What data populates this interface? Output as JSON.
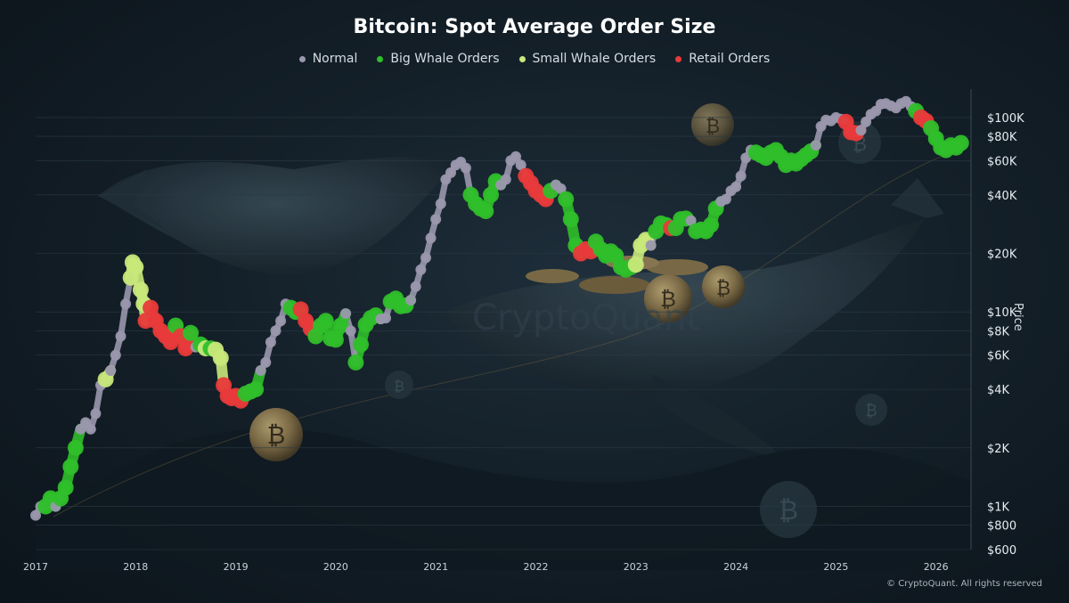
{
  "chart_data": {
    "type": "scatter",
    "title": "Bitcoin: Spot Average Order Size",
    "ylabel": "Price",
    "xlabel": "",
    "y_scale": "log",
    "ylim": [
      600,
      140000
    ],
    "xlim": [
      2017.0,
      2026.35
    ],
    "x_ticks": [
      "2017",
      "2018",
      "2019",
      "2020",
      "2021",
      "2022",
      "2023",
      "2024",
      "2025",
      "2026"
    ],
    "y_ticks": [
      {
        "value": 100000,
        "label": "$100K"
      },
      {
        "value": 80000,
        "label": "$80K"
      },
      {
        "value": 60000,
        "label": "$60K"
      },
      {
        "value": 40000,
        "label": "$40K"
      },
      {
        "value": 20000,
        "label": "$20K"
      },
      {
        "value": 10000,
        "label": "$10K"
      },
      {
        "value": 8000,
        "label": "$8K"
      },
      {
        "value": 6000,
        "label": "$6K"
      },
      {
        "value": 4000,
        "label": "$4K"
      },
      {
        "value": 2000,
        "label": "$2K"
      },
      {
        "value": 1000,
        "label": "$1K"
      },
      {
        "value": 800,
        "label": "$800"
      },
      {
        "value": 600,
        "label": "$600"
      }
    ],
    "grid": true,
    "legend_position": "top-center",
    "series": [
      {
        "name": "Normal",
        "color": "#9a97ad"
      },
      {
        "name": "Big Whale Orders",
        "color": "#2fbf2a"
      },
      {
        "name": "Small Whale Orders",
        "color": "#c8e87a"
      },
      {
        "name": "Retail Orders",
        "color": "#e83a3a"
      }
    ],
    "points": [
      [
        2017.0,
        900,
        "Normal"
      ],
      [
        2017.05,
        1000,
        "Normal"
      ],
      [
        2017.1,
        1000,
        "Big Whale Orders"
      ],
      [
        2017.15,
        1100,
        "Big Whale Orders"
      ],
      [
        2017.2,
        1000,
        "Normal"
      ],
      [
        2017.25,
        1100,
        "Big Whale Orders"
      ],
      [
        2017.3,
        1250,
        "Big Whale Orders"
      ],
      [
        2017.35,
        1600,
        "Big Whale Orders"
      ],
      [
        2017.4,
        2000,
        "Big Whale Orders"
      ],
      [
        2017.45,
        2500,
        "Normal"
      ],
      [
        2017.5,
        2700,
        "Normal"
      ],
      [
        2017.55,
        2500,
        "Normal"
      ],
      [
        2017.6,
        3000,
        "Normal"
      ],
      [
        2017.65,
        4200,
        "Normal"
      ],
      [
        2017.7,
        4500,
        "Small Whale Orders"
      ],
      [
        2017.75,
        5000,
        "Normal"
      ],
      [
        2017.8,
        6000,
        "Normal"
      ],
      [
        2017.85,
        7500,
        "Normal"
      ],
      [
        2017.9,
        11000,
        "Normal"
      ],
      [
        2017.95,
        15000,
        "Small Whale Orders"
      ],
      [
        2017.97,
        18000,
        "Small Whale Orders"
      ],
      [
        2018.0,
        17000,
        "Small Whale Orders"
      ],
      [
        2018.05,
        13000,
        "Small Whale Orders"
      ],
      [
        2018.08,
        11000,
        "Small Whale Orders"
      ],
      [
        2018.1,
        9000,
        "Retail Orders"
      ],
      [
        2018.15,
        10500,
        "Retail Orders"
      ],
      [
        2018.2,
        9000,
        "Retail Orders"
      ],
      [
        2018.25,
        8000,
        "Retail Orders"
      ],
      [
        2018.3,
        7500,
        "Retail Orders"
      ],
      [
        2018.35,
        7000,
        "Retail Orders"
      ],
      [
        2018.4,
        8500,
        "Big Whale Orders"
      ],
      [
        2018.45,
        7500,
        "Retail Orders"
      ],
      [
        2018.5,
        6500,
        "Retail Orders"
      ],
      [
        2018.55,
        7800,
        "Big Whale Orders"
      ],
      [
        2018.6,
        6600,
        "Normal"
      ],
      [
        2018.65,
        6800,
        "Big Whale Orders"
      ],
      [
        2018.7,
        6500,
        "Small Whale Orders"
      ],
      [
        2018.75,
        6500,
        "Big Whale Orders"
      ],
      [
        2018.8,
        6400,
        "Small Whale Orders"
      ],
      [
        2018.85,
        5800,
        "Small Whale Orders"
      ],
      [
        2018.88,
        4200,
        "Retail Orders"
      ],
      [
        2018.92,
        3700,
        "Retail Orders"
      ],
      [
        2018.96,
        3600,
        "Retail Orders"
      ],
      [
        2019.0,
        3700,
        "Retail Orders"
      ],
      [
        2019.05,
        3500,
        "Retail Orders"
      ],
      [
        2019.1,
        3800,
        "Big Whale Orders"
      ],
      [
        2019.15,
        3900,
        "Big Whale Orders"
      ],
      [
        2019.2,
        4000,
        "Big Whale Orders"
      ],
      [
        2019.25,
        5000,
        "Normal"
      ],
      [
        2019.3,
        5500,
        "Normal"
      ],
      [
        2019.35,
        7000,
        "Normal"
      ],
      [
        2019.4,
        8000,
        "Normal"
      ],
      [
        2019.45,
        9000,
        "Normal"
      ],
      [
        2019.5,
        11000,
        "Normal"
      ],
      [
        2019.55,
        10500,
        "Big Whale Orders"
      ],
      [
        2019.6,
        10000,
        "Big Whale Orders"
      ],
      [
        2019.65,
        10300,
        "Retail Orders"
      ],
      [
        2019.7,
        9000,
        "Retail Orders"
      ],
      [
        2019.75,
        8200,
        "Retail Orders"
      ],
      [
        2019.8,
        7500,
        "Big Whale Orders"
      ],
      [
        2019.85,
        8500,
        "Big Whale Orders"
      ],
      [
        2019.9,
        9000,
        "Big Whale Orders"
      ],
      [
        2019.95,
        7300,
        "Big Whale Orders"
      ],
      [
        2020.0,
        7200,
        "Big Whale Orders"
      ],
      [
        2020.05,
        8500,
        "Big Whale Orders"
      ],
      [
        2020.1,
        9800,
        "Normal"
      ],
      [
        2020.15,
        8000,
        "Normal"
      ],
      [
        2020.2,
        5500,
        "Big Whale Orders"
      ],
      [
        2020.25,
        6800,
        "Big Whale Orders"
      ],
      [
        2020.3,
        8600,
        "Big Whale Orders"
      ],
      [
        2020.35,
        9300,
        "Big Whale Orders"
      ],
      [
        2020.4,
        9600,
        "Big Whale Orders"
      ],
      [
        2020.45,
        9200,
        "Normal"
      ],
      [
        2020.5,
        9300,
        "Normal"
      ],
      [
        2020.55,
        11300,
        "Big Whale Orders"
      ],
      [
        2020.6,
        11700,
        "Big Whale Orders"
      ],
      [
        2020.65,
        10700,
        "Big Whale Orders"
      ],
      [
        2020.7,
        10800,
        "Big Whale Orders"
      ],
      [
        2020.75,
        11500,
        "Normal"
      ],
      [
        2020.8,
        13500,
        "Normal"
      ],
      [
        2020.85,
        16500,
        "Normal"
      ],
      [
        2020.9,
        19000,
        "Normal"
      ],
      [
        2020.95,
        24000,
        "Normal"
      ],
      [
        2021.0,
        30000,
        "Normal"
      ],
      [
        2021.05,
        36000,
        "Normal"
      ],
      [
        2021.1,
        48000,
        "Normal"
      ],
      [
        2021.15,
        52000,
        "Normal"
      ],
      [
        2021.2,
        57000,
        "Normal"
      ],
      [
        2021.25,
        59000,
        "Normal"
      ],
      [
        2021.3,
        55000,
        "Normal"
      ],
      [
        2021.35,
        40000,
        "Big Whale Orders"
      ],
      [
        2021.4,
        36000,
        "Big Whale Orders"
      ],
      [
        2021.45,
        34000,
        "Big Whale Orders"
      ],
      [
        2021.5,
        33000,
        "Big Whale Orders"
      ],
      [
        2021.55,
        40000,
        "Big Whale Orders"
      ],
      [
        2021.6,
        47000,
        "Big Whale Orders"
      ],
      [
        2021.65,
        45000,
        "Normal"
      ],
      [
        2021.7,
        48000,
        "Normal"
      ],
      [
        2021.75,
        60000,
        "Normal"
      ],
      [
        2021.8,
        63000,
        "Normal"
      ],
      [
        2021.85,
        57000,
        "Normal"
      ],
      [
        2021.9,
        50000,
        "Retail Orders"
      ],
      [
        2021.95,
        46000,
        "Retail Orders"
      ],
      [
        2022.0,
        42000,
        "Retail Orders"
      ],
      [
        2022.05,
        40000,
        "Retail Orders"
      ],
      [
        2022.1,
        38000,
        "Retail Orders"
      ],
      [
        2022.15,
        42000,
        "Big Whale Orders"
      ],
      [
        2022.2,
        45000,
        "Normal"
      ],
      [
        2022.25,
        43000,
        "Normal"
      ],
      [
        2022.3,
        38000,
        "Big Whale Orders"
      ],
      [
        2022.35,
        30000,
        "Big Whale Orders"
      ],
      [
        2022.4,
        22000,
        "Big Whale Orders"
      ],
      [
        2022.45,
        20000,
        "Retail Orders"
      ],
      [
        2022.5,
        21000,
        "Retail Orders"
      ],
      [
        2022.55,
        20500,
        "Retail Orders"
      ],
      [
        2022.6,
        23000,
        "Big Whale Orders"
      ],
      [
        2022.65,
        21000,
        "Big Whale Orders"
      ],
      [
        2022.7,
        19500,
        "Big Whale Orders"
      ],
      [
        2022.75,
        20500,
        "Big Whale Orders"
      ],
      [
        2022.8,
        19500,
        "Big Whale Orders"
      ],
      [
        2022.85,
        17000,
        "Big Whale Orders"
      ],
      [
        2022.9,
        16500,
        "Big Whale Orders"
      ],
      [
        2022.95,
        17000,
        "Big Whale Orders"
      ],
      [
        2023.0,
        17500,
        "Small Whale Orders"
      ],
      [
        2023.05,
        22000,
        "Small Whale Orders"
      ],
      [
        2023.1,
        23500,
        "Small Whale Orders"
      ],
      [
        2023.15,
        22000,
        "Normal"
      ],
      [
        2023.2,
        26000,
        "Big Whale Orders"
      ],
      [
        2023.25,
        28500,
        "Big Whale Orders"
      ],
      [
        2023.3,
        28000,
        "Big Whale Orders"
      ],
      [
        2023.35,
        27000,
        "Retail Orders"
      ],
      [
        2023.4,
        27000,
        "Big Whale Orders"
      ],
      [
        2023.45,
        30000,
        "Big Whale Orders"
      ],
      [
        2023.5,
        30200,
        "Big Whale Orders"
      ],
      [
        2023.55,
        29500,
        "Normal"
      ],
      [
        2023.6,
        26000,
        "Big Whale Orders"
      ],
      [
        2023.65,
        26500,
        "Big Whale Orders"
      ],
      [
        2023.7,
        26000,
        "Big Whale Orders"
      ],
      [
        2023.75,
        28000,
        "Big Whale Orders"
      ],
      [
        2023.8,
        34000,
        "Big Whale Orders"
      ],
      [
        2023.85,
        37000,
        "Normal"
      ],
      [
        2023.9,
        38000,
        "Normal"
      ],
      [
        2023.95,
        42000,
        "Normal"
      ],
      [
        2024.0,
        44000,
        "Normal"
      ],
      [
        2024.05,
        50000,
        "Normal"
      ],
      [
        2024.1,
        62000,
        "Normal"
      ],
      [
        2024.15,
        68000,
        "Normal"
      ],
      [
        2024.2,
        66000,
        "Big Whale Orders"
      ],
      [
        2024.25,
        64000,
        "Big Whale Orders"
      ],
      [
        2024.3,
        62000,
        "Big Whale Orders"
      ],
      [
        2024.35,
        66000,
        "Big Whale Orders"
      ],
      [
        2024.4,
        68000,
        "Big Whale Orders"
      ],
      [
        2024.45,
        63000,
        "Big Whale Orders"
      ],
      [
        2024.5,
        57000,
        "Big Whale Orders"
      ],
      [
        2024.55,
        60000,
        "Big Whale Orders"
      ],
      [
        2024.6,
        58000,
        "Big Whale Orders"
      ],
      [
        2024.65,
        61000,
        "Big Whale Orders"
      ],
      [
        2024.7,
        64000,
        "Big Whale Orders"
      ],
      [
        2024.75,
        67000,
        "Big Whale Orders"
      ],
      [
        2024.8,
        72000,
        "Normal"
      ],
      [
        2024.85,
        90000,
        "Normal"
      ],
      [
        2024.9,
        97000,
        "Normal"
      ],
      [
        2024.95,
        96000,
        "Normal"
      ],
      [
        2025.0,
        100000,
        "Normal"
      ],
      [
        2025.05,
        98000,
        "Normal"
      ],
      [
        2025.1,
        95000,
        "Retail Orders"
      ],
      [
        2025.15,
        84000,
        "Retail Orders"
      ],
      [
        2025.2,
        83000,
        "Retail Orders"
      ],
      [
        2025.25,
        86000,
        "Normal"
      ],
      [
        2025.3,
        95000,
        "Normal"
      ],
      [
        2025.35,
        104000,
        "Normal"
      ],
      [
        2025.4,
        108000,
        "Normal"
      ],
      [
        2025.45,
        117000,
        "Normal"
      ],
      [
        2025.5,
        118000,
        "Normal"
      ],
      [
        2025.55,
        115000,
        "Normal"
      ],
      [
        2025.6,
        112000,
        "Normal"
      ],
      [
        2025.65,
        118000,
        "Normal"
      ],
      [
        2025.7,
        121000,
        "Normal"
      ],
      [
        2025.75,
        114000,
        "Normal"
      ],
      [
        2025.8,
        108000,
        "Big Whale Orders"
      ],
      [
        2025.85,
        100000,
        "Retail Orders"
      ],
      [
        2025.9,
        96000,
        "Retail Orders"
      ],
      [
        2025.95,
        88000,
        "Big Whale Orders"
      ],
      [
        2026.0,
        78000,
        "Big Whale Orders"
      ],
      [
        2026.05,
        70000,
        "Big Whale Orders"
      ],
      [
        2026.1,
        68000,
        "Big Whale Orders"
      ],
      [
        2026.15,
        72000,
        "Big Whale Orders"
      ],
      [
        2026.2,
        70000,
        "Big Whale Orders"
      ],
      [
        2026.25,
        74000,
        "Big Whale Orders"
      ]
    ]
  },
  "watermark": "© CryptoQuant. All rights reserved",
  "background_watermark": "CryptoQuant",
  "colors": {
    "grid": "#2a3a46",
    "axis_text": "#c9d2da",
    "background": "#142029"
  }
}
